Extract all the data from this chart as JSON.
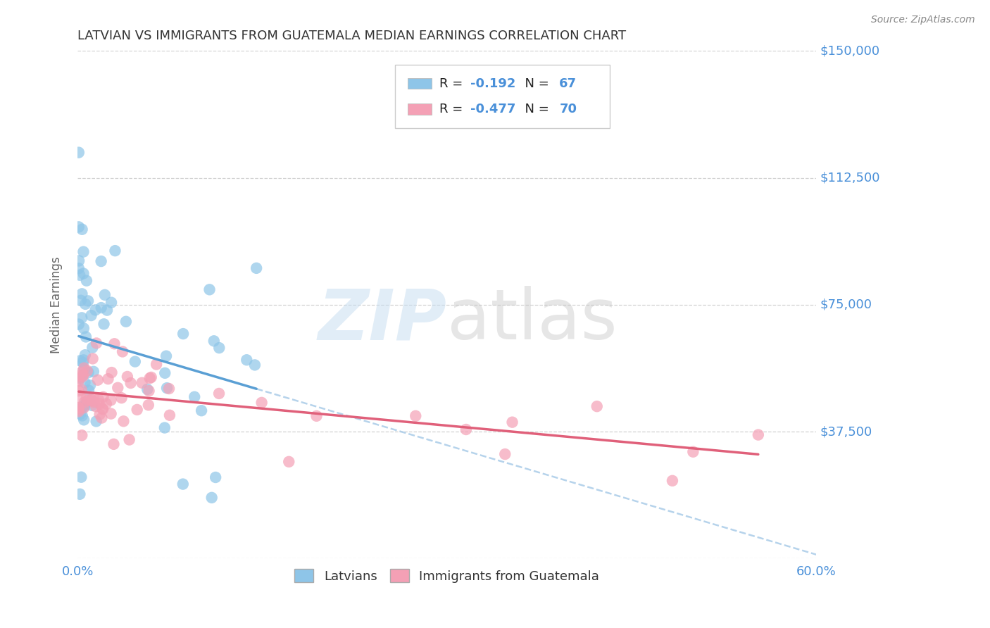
{
  "title": "LATVIAN VS IMMIGRANTS FROM GUATEMALA MEDIAN EARNINGS CORRELATION CHART",
  "source": "Source: ZipAtlas.com",
  "ylabel": "Median Earnings",
  "xlim": [
    0.0,
    0.6
  ],
  "ylim": [
    0,
    150000
  ],
  "yticks": [
    0,
    37500,
    75000,
    112500,
    150000
  ],
  "ytick_labels": [
    "",
    "$37,500",
    "$75,000",
    "$112,500",
    "$150,000"
  ],
  "color_latvian": "#8ec5e8",
  "color_guatemala": "#f4a0b5",
  "line_color_latvian": "#5a9fd4",
  "line_color_guatemala": "#e0607a",
  "line_color_dashed": "#aacce8",
  "R_latvian": -0.192,
  "N_latvian": 67,
  "R_guatemala": -0.477,
  "N_guatemala": 70,
  "legend_label_latvian": "Latvians",
  "legend_label_guatemala": "Immigrants from Guatemala",
  "background_color": "#ffffff",
  "grid_color": "#cccccc",
  "axis_label_color": "#4a90d9",
  "title_color": "#333333"
}
